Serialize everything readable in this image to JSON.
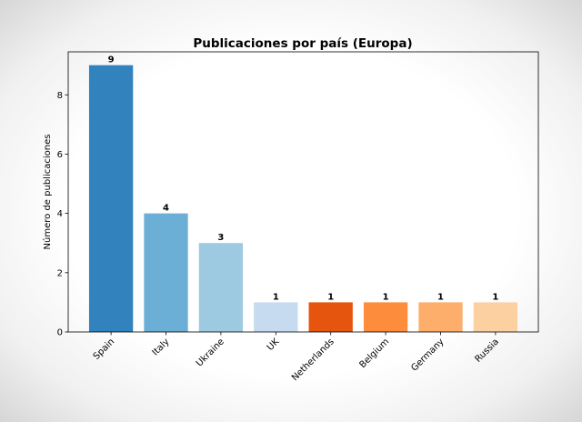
{
  "chart_data": {
    "type": "bar",
    "title": "Publicaciones por país (Europa)",
    "xlabel": "",
    "ylabel": "Número de publicaciones",
    "categories": [
      "Spain",
      "Italy",
      "Ukraine",
      "UK",
      "Netherlands",
      "Belgium",
      "Germany",
      "Russia"
    ],
    "values": [
      9,
      4,
      3,
      1,
      1,
      1,
      1,
      1
    ],
    "colors": [
      "#3182bd",
      "#6baed6",
      "#9ecae1",
      "#c6dbef",
      "#e6550d",
      "#fd8d3c",
      "#fdae6b",
      "#fdd0a2"
    ],
    "yticks": [
      0,
      2,
      4,
      6,
      8
    ],
    "ylim": [
      0,
      9.45
    ],
    "grid": false,
    "data_labels": true
  }
}
